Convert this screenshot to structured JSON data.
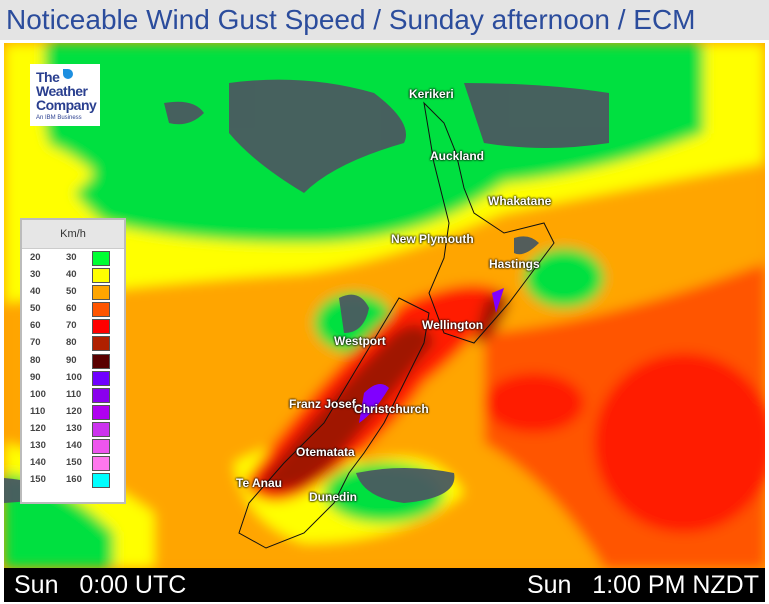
{
  "title": "Noticeable Wind Gust Speed / Sunday afternoon / ECM",
  "logo": {
    "line1": "The",
    "line2": "Weather",
    "line3": "Company",
    "sub": "An IBM Business"
  },
  "legend": {
    "unit": "Km/h",
    "rows": [
      {
        "from": "20",
        "to": "30",
        "color": "#00ff33"
      },
      {
        "from": "30",
        "to": "40",
        "color": "#ffff00"
      },
      {
        "from": "40",
        "to": "50",
        "color": "#ffa500"
      },
      {
        "from": "50",
        "to": "60",
        "color": "#ff5500"
      },
      {
        "from": "60",
        "to": "70",
        "color": "#ff0000"
      },
      {
        "from": "70",
        "to": "80",
        "color": "#b02000"
      },
      {
        "from": "80",
        "to": "90",
        "color": "#5a0000"
      },
      {
        "from": "90",
        "to": "100",
        "color": "#7000ff"
      },
      {
        "from": "100",
        "to": "110",
        "color": "#8a00ee"
      },
      {
        "from": "110",
        "to": "120",
        "color": "#b000f0"
      },
      {
        "from": "120",
        "to": "130",
        "color": "#cc33ee"
      },
      {
        "from": "130",
        "to": "140",
        "color": "#ee55ee"
      },
      {
        "from": "140",
        "to": "150",
        "color": "#ff77ee"
      },
      {
        "from": "150",
        "to": "160",
        "color": "#00ffff"
      }
    ]
  },
  "cities": [
    {
      "name": "Kerikeri"
    },
    {
      "name": "Auckland"
    },
    {
      "name": "Whakatane"
    },
    {
      "name": "New Plymouth"
    },
    {
      "name": "Hastings"
    },
    {
      "name": "Wellington"
    },
    {
      "name": "Westport"
    },
    {
      "name": "Franz Josef"
    },
    {
      "name": "Christchurch"
    },
    {
      "name": "Otematata"
    },
    {
      "name": "Te Anau"
    },
    {
      "name": "Dunedin"
    }
  ],
  "footer": {
    "utc": "Sun   0:00 UTC",
    "local": "Sun   1:00 PM NZDT"
  }
}
